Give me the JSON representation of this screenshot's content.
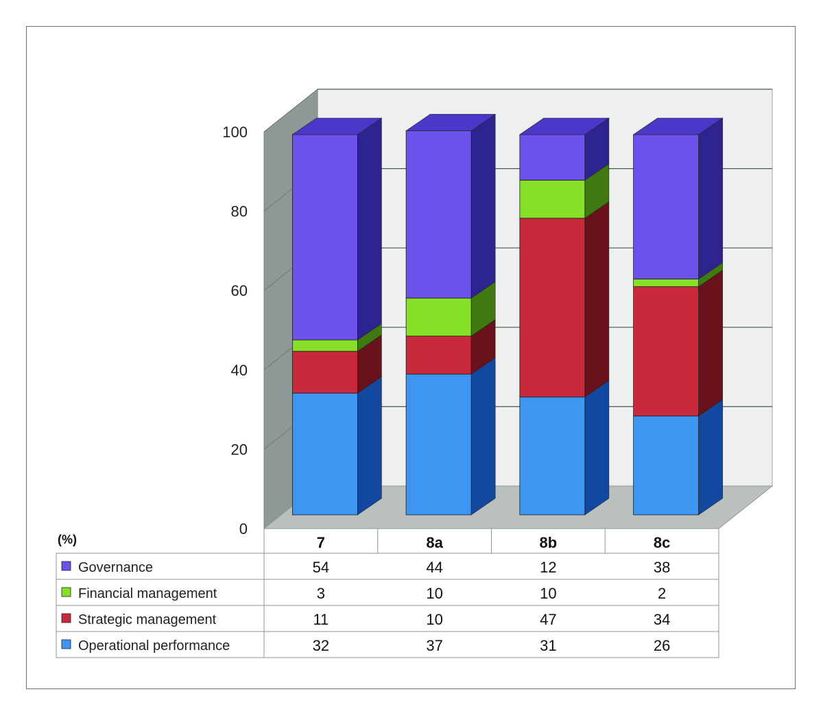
{
  "chart_data": {
    "type": "bar",
    "stacked": true,
    "three_d": true,
    "categories": [
      "7",
      "8a",
      "8b",
      "8c"
    ],
    "unit_label": "(%)",
    "ylim": [
      0,
      100
    ],
    "yticks": [
      "0",
      "20",
      "40",
      "60",
      "80",
      "100"
    ],
    "grid": true,
    "legend": "data-table-left",
    "series": [
      {
        "name": "Operational performance",
        "values": [
          32,
          37,
          31,
          26
        ],
        "color": "#3d96f2",
        "side": "#1248a0",
        "top": "#78b8f8"
      },
      {
        "name": "Strategic management",
        "values": [
          11,
          10,
          47,
          34
        ],
        "color": "#c82a3c",
        "side": "#6a121c",
        "top": "#e06070"
      },
      {
        "name": "Financial management",
        "values": [
          3,
          10,
          10,
          2
        ],
        "color": "#86e028",
        "side": "#3f7a10",
        "top": "#b4f060"
      },
      {
        "name": "Governance",
        "values": [
          54,
          44,
          12,
          38
        ],
        "color": "#6c52ea",
        "side": "#2e2490",
        "top": "#4a38c8"
      }
    ],
    "table_order": [
      "Governance",
      "Financial management",
      "Strategic management",
      "Operational performance"
    ]
  }
}
